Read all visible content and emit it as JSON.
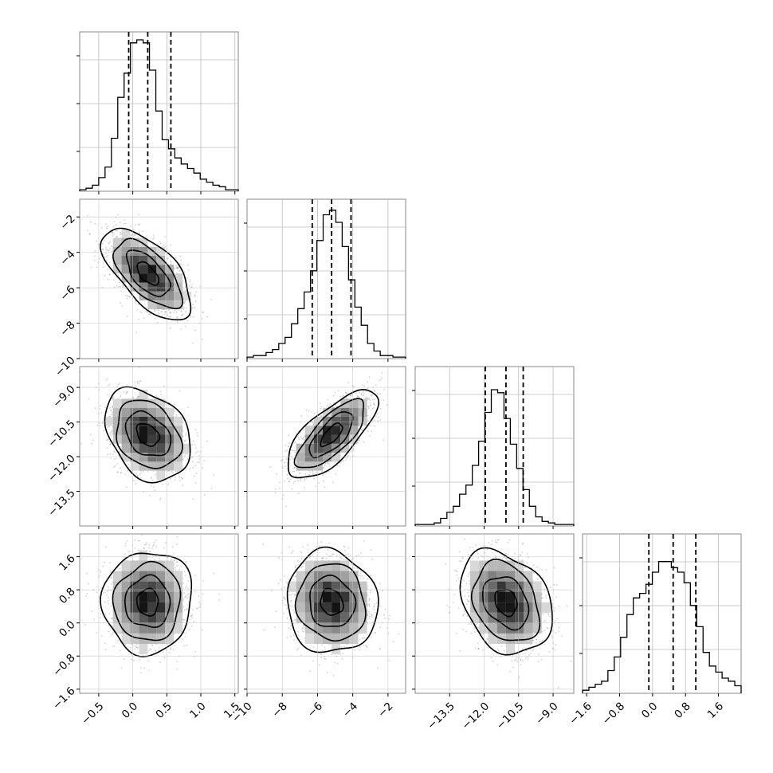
{
  "chart_data": {
    "type": "corner",
    "grid": true,
    "parameters": 4,
    "ticks": {
      "p0": {
        "values": [
          -0.5,
          0.0,
          0.5,
          1.0,
          1.5
        ],
        "labels": [
          "−0.5",
          "0.0",
          "0.5",
          "1.0",
          "1.5"
        ],
        "range": [
          -0.78,
          1.55
        ]
      },
      "p1": {
        "values": [
          -10,
          -8,
          -6,
          -4,
          -2
        ],
        "labels": [
          "−10",
          "−8",
          "−6",
          "−4",
          "−2"
        ],
        "range": [
          -10.0,
          -1.0
        ]
      },
      "p2": {
        "values": [
          -13.5,
          -12.0,
          -10.5,
          -9.0
        ],
        "labels": [
          "−13.5",
          "−12.0",
          "−10.5",
          "−9.0"
        ],
        "range": [
          -15.0,
          -8.1
        ]
      },
      "p3": {
        "values": [
          -1.6,
          -0.8,
          0.0,
          0.8,
          1.6
        ],
        "labels": [
          "−1.6",
          "−0.8",
          "0.0",
          "0.8",
          "1.6"
        ],
        "range": [
          -1.7,
          2.15
        ]
      }
    },
    "quantiles": {
      "p0": [
        -0.06,
        0.22,
        0.56
      ],
      "p1": [
        -6.3,
        -5.2,
        -4.1
      ],
      "p2": [
        -11.95,
        -11.05,
        -10.3
      ],
      "p3": [
        -0.09,
        0.5,
        1.05
      ]
    },
    "marginals": {
      "p0": {
        "bins": [
          -0.78,
          1.55
        ],
        "counts": [
          0.01,
          0.02,
          0.04,
          0.09,
          0.16,
          0.35,
          0.62,
          0.78,
          0.98,
          1.0,
          0.98,
          0.8,
          0.53,
          0.34,
          0.28,
          0.22,
          0.18,
          0.15,
          0.12,
          0.08,
          0.06,
          0.04,
          0.03,
          0.01,
          0.01
        ]
      },
      "p1": {
        "bins": [
          -10.0,
          -1.0
        ],
        "counts": [
          0.01,
          0.02,
          0.02,
          0.04,
          0.06,
          0.1,
          0.14,
          0.23,
          0.33,
          0.44,
          0.58,
          0.78,
          0.95,
          0.98,
          0.9,
          0.74,
          0.52,
          0.34,
          0.22,
          0.1,
          0.05,
          0.02,
          0.02,
          0.01,
          0.01
        ]
      },
      "p2": {
        "bins": [
          -15.0,
          -8.1
        ],
        "counts": [
          0.01,
          0.01,
          0.01,
          0.02,
          0.05,
          0.09,
          0.13,
          0.21,
          0.27,
          0.4,
          0.56,
          0.75,
          0.9,
          0.88,
          0.71,
          0.54,
          0.38,
          0.24,
          0.13,
          0.06,
          0.03,
          0.02,
          0.01,
          0.01,
          0.01
        ]
      },
      "p3": {
        "bins": [
          -1.7,
          2.15
        ],
        "counts": [
          0.02,
          0.04,
          0.06,
          0.08,
          0.15,
          0.24,
          0.37,
          0.52,
          0.63,
          0.66,
          0.72,
          0.8,
          0.87,
          0.87,
          0.83,
          0.8,
          0.73,
          0.58,
          0.44,
          0.27,
          0.18,
          0.14,
          0.1,
          0.08,
          0.05
        ]
      }
    },
    "joint": [
      {
        "x": "p0",
        "y": "p1",
        "mean": [
          0.22,
          -5.2
        ],
        "sd": [
          0.28,
          1.1
        ],
        "rho": -0.6
      },
      {
        "x": "p0",
        "y": "p2",
        "mean": [
          0.22,
          -11.05
        ],
        "sd": [
          0.28,
          0.85
        ],
        "rho": -0.3
      },
      {
        "x": "p1",
        "y": "p2",
        "mean": [
          -5.2,
          -11.05
        ],
        "sd": [
          1.1,
          0.85
        ],
        "rho": 0.72
      },
      {
        "x": "p0",
        "y": "p3",
        "mean": [
          0.22,
          0.5
        ],
        "sd": [
          0.28,
          0.55
        ],
        "rho": 0.0
      },
      {
        "x": "p1",
        "y": "p3",
        "mean": [
          -5.2,
          0.5
        ],
        "sd": [
          1.1,
          0.55
        ],
        "rho": -0.1
      },
      {
        "x": "p2",
        "y": "p3",
        "mean": [
          -11.05,
          0.5
        ],
        "sd": [
          0.85,
          0.55
        ],
        "rho": -0.25
      }
    ],
    "contour_levels_sigma": [
      0.5,
      1.0,
      1.5,
      2.0
    ]
  }
}
